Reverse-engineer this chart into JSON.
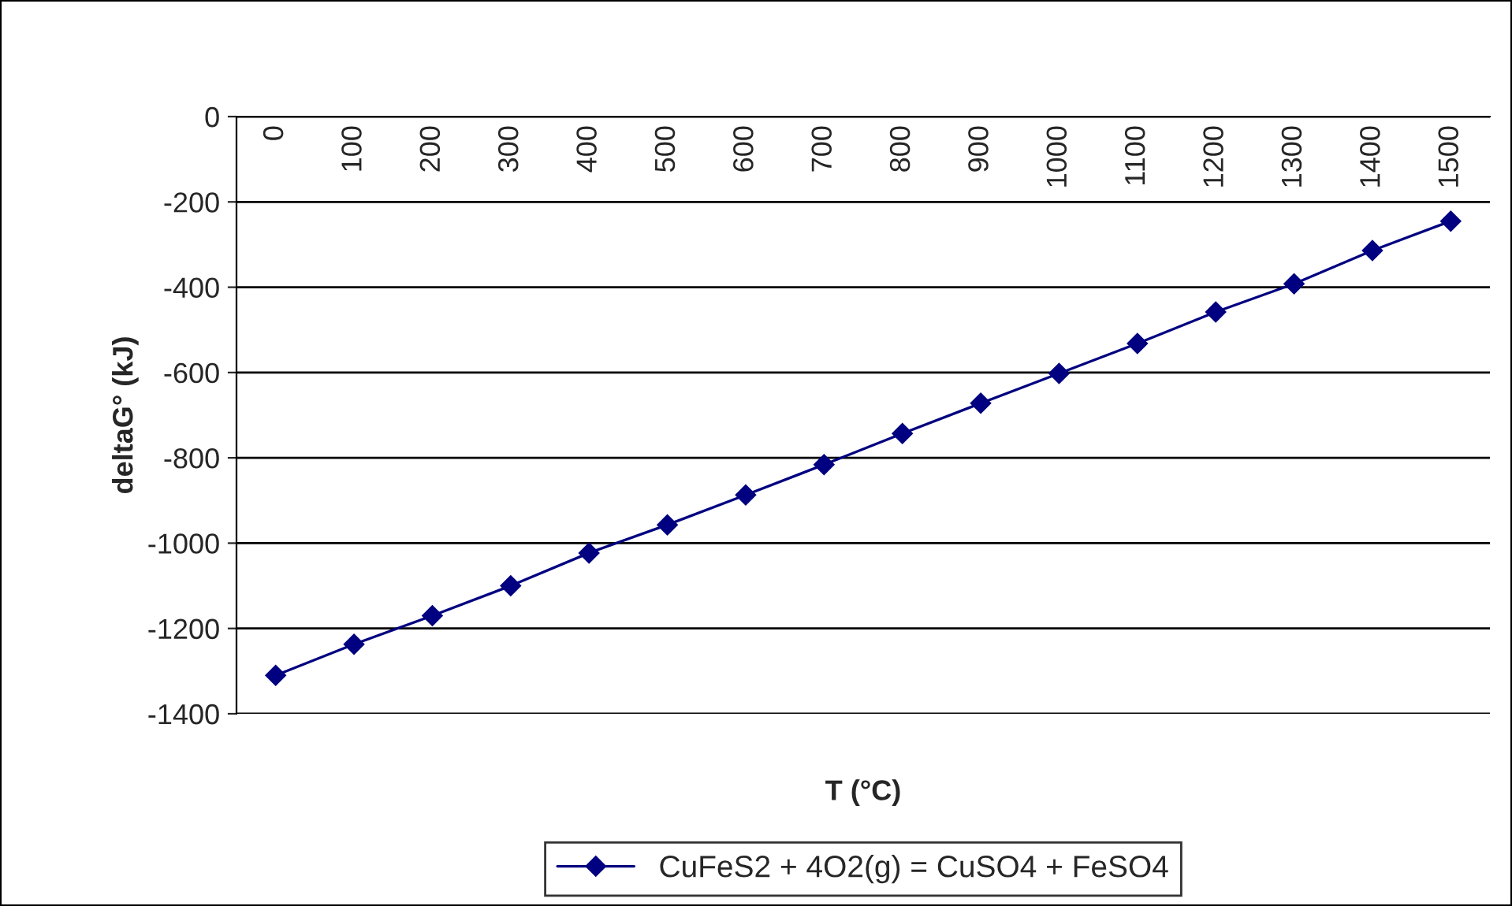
{
  "chart_data": {
    "type": "line",
    "xlabel": "T (°C)",
    "ylabel": "deltaG° (kJ)",
    "categories": [
      "0",
      "100",
      "200",
      "300",
      "400",
      "500",
      "600",
      "700",
      "800",
      "900",
      "1000",
      "1100",
      "1200",
      "1300",
      "1400",
      "1500"
    ],
    "series": [
      {
        "name": "CuFeS2 + 4O2(g) = CuSO4 + FeSO4",
        "color": "#000080",
        "values": [
          -1310,
          -1237,
          -1170,
          -1100,
          -1023,
          -957,
          -887,
          -816,
          -743,
          -672,
          -602,
          -532,
          -458,
          -392,
          -314,
          -245
        ]
      }
    ],
    "ylim": [
      -1400,
      0
    ],
    "yticks": [
      -1400,
      -1200,
      -1000,
      -800,
      -600,
      -400,
      -200,
      0
    ],
    "grid": "y",
    "legend": "bottom",
    "marker": "diamond",
    "line_style": "solid"
  }
}
